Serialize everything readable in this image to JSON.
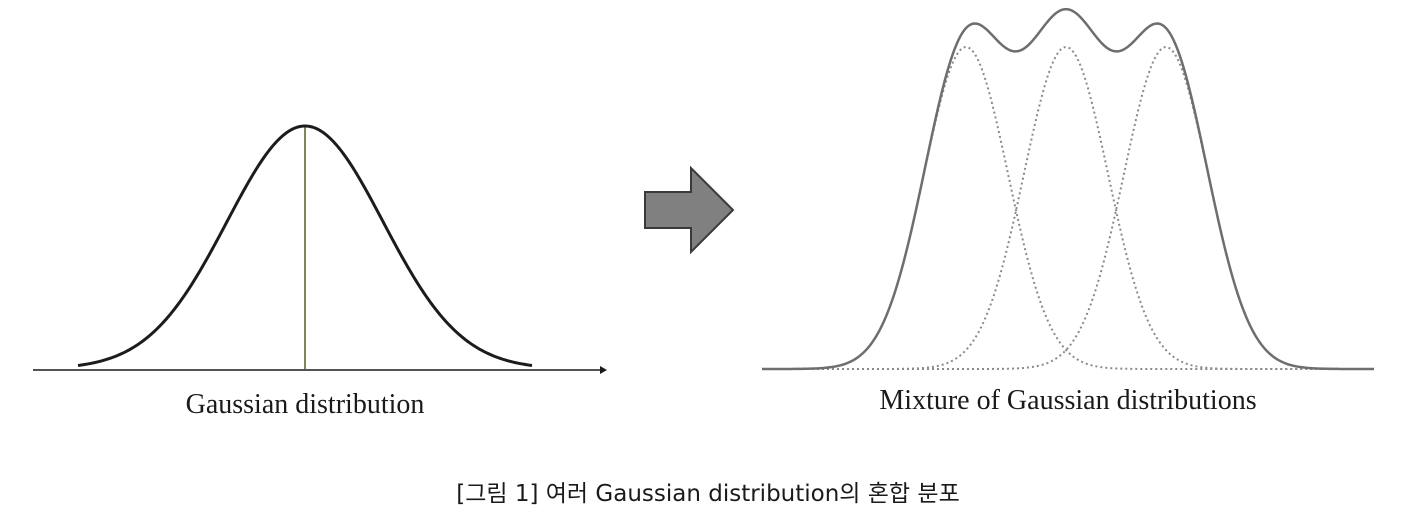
{
  "left_panel": {
    "label": "Gaussian distribution"
  },
  "right_panel": {
    "label": "Mixture of Gaussian distributions",
    "component_count": 3
  },
  "arrow": {
    "icon": "right-arrow-icon",
    "fill_color": "#808080",
    "stroke_color": "#3a3a3a"
  },
  "colors": {
    "single_curve": "#1c1c1c",
    "center_line": "#5a5a2a",
    "mixture_curve": "#6e6e6e",
    "component_curve": "#8a8a8a"
  },
  "caption": "[그림 1] 여러 Gaussian distribution의 혼합 분포"
}
